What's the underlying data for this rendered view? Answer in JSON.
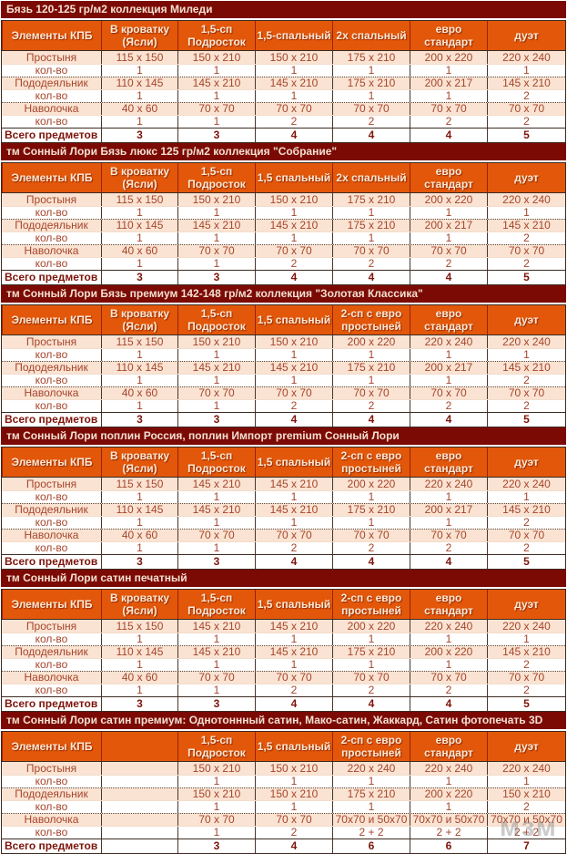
{
  "labels": {
    "qty": "кол-во"
  },
  "colors": {
    "title_bar_bg": "#7c0a04",
    "header_bg": "#e2570a",
    "row_peach_bg": "#fae3d2",
    "data_text": "#a6452c",
    "total_text": "#7d140a"
  },
  "watermark": "мзм",
  "sections": [
    {
      "title": "Бязь 120-125 гр/м2 коллекция Миледи",
      "columns": [
        "Элементы КПБ",
        "В кроватку\n(Ясли)",
        "1,5-сп\nПодросток",
        "1,5-спальный",
        "2х спальный",
        "евро стандарт",
        "дуэт"
      ],
      "rows": [
        {
          "label": "Простыня",
          "sizes": [
            "115 x 150",
            "150 x 210",
            "150 x 210",
            "175 x 210",
            "200 x 220",
            "220 x 240"
          ],
          "qty": [
            "1",
            "1",
            "1",
            "1",
            "1",
            "1"
          ]
        },
        {
          "label": "Пододеяльник",
          "sizes": [
            "110 x 145",
            "145 x 210",
            "145 x 210",
            "175 x 210",
            "200 x 217",
            "145 x 210"
          ],
          "qty": [
            "1",
            "1",
            "1",
            "1",
            "1",
            "2"
          ]
        },
        {
          "label": "Наволочка",
          "sizes": [
            "40 x 60",
            "70 x 70",
            "70 x 70",
            "70 x 70",
            "70 x 70",
            "70 x 70"
          ],
          "qty": [
            "1",
            "1",
            "2",
            "2",
            "2",
            "2"
          ]
        }
      ],
      "total_label": "Всего предметов",
      "totals": [
        "3",
        "3",
        "4",
        "4",
        "4",
        "5"
      ]
    },
    {
      "title": "тм Сонный Лори  Бязь люкс 125 гр/м2  коллекция \"Собрание\"",
      "columns": [
        "Элементы КПБ",
        "В кроватку\n(Ясли)",
        "1,5-сп\nПодросток",
        "1,5 спальный",
        "2х спальный",
        "евро стандарт",
        "дуэт"
      ],
      "rows": [
        {
          "label": "Простыня",
          "sizes": [
            "115 x 150",
            "150 x 210",
            "150 x 210",
            "175 x 210",
            "200 x 220",
            "220 x 240"
          ],
          "qty": [
            "1",
            "1",
            "1",
            "1",
            "1",
            "1"
          ]
        },
        {
          "label": "Пододеяльник",
          "sizes": [
            "110 x 145",
            "145 x 210",
            "145 x 210",
            "175 x 210",
            "200 x 217",
            "145 x 210"
          ],
          "qty": [
            "1",
            "1",
            "1",
            "1",
            "1",
            "2"
          ]
        },
        {
          "label": "Наволочка",
          "sizes": [
            "40 x 60",
            "70 x 70",
            "70 x 70",
            "70 x 70",
            "70 x 70",
            "70 x 70"
          ],
          "qty": [
            "1",
            "1",
            "2",
            "2",
            "2",
            "2"
          ]
        }
      ],
      "total_label": "Всего предметов",
      "totals": [
        "3",
        "3",
        "4",
        "4",
        "4",
        "5"
      ]
    },
    {
      "title": "тм Сонный Лори  Бязь премиум 142-148 гр/м2  коллекция \"Золотая Классика\"",
      "columns": [
        "Элементы КПБ",
        "В кроватку\n(Ясли)",
        "1,5-сп\nПодросток",
        "1,5 спальный",
        "2-сп с евро\nпростыней",
        "евро стандарт",
        "дуэт"
      ],
      "rows": [
        {
          "label": "Простыня",
          "sizes": [
            "115 x 150",
            "150 x 210",
            "150 x 210",
            "200 x 220",
            "220 x 240",
            "220 x 240"
          ],
          "qty": [
            "1",
            "1",
            "1",
            "1",
            "1",
            "1"
          ]
        },
        {
          "label": "Пододеяльник",
          "sizes": [
            "110 x 145",
            "145 x 210",
            "145 x 210",
            "175 x 210",
            "200 x 217",
            "145 x 210"
          ],
          "qty": [
            "1",
            "1",
            "1",
            "1",
            "1",
            "2"
          ]
        },
        {
          "label": "Наволочка",
          "sizes": [
            "40 x 60",
            "70 x 70",
            "70 x 70",
            "70 x 70",
            "70 x 70",
            "70 x 70"
          ],
          "qty": [
            "1",
            "1",
            "2",
            "2",
            "2",
            "2"
          ]
        }
      ],
      "total_label": "Всего предметов",
      "totals": [
        "3",
        "3",
        "4",
        "4",
        "4",
        "5"
      ]
    },
    {
      "title": "тм Сонный Лори поплин Россия, поплин Импорт premium Сонный Лори",
      "columns": [
        "Элементы КПБ",
        "В кроватку\n(Ясли)",
        "1,5-сп\nПодросток",
        "1,5 спальный",
        "2-сп с евро\nпростыней",
        "евро стандарт",
        "дуэт"
      ],
      "rows": [
        {
          "label": "Простыня",
          "sizes": [
            "115 x 150",
            "145 x 210",
            "145 x 210",
            "200 x 220",
            "220 x 240",
            "220 x 240"
          ],
          "qty": [
            "1",
            "1",
            "1",
            "1",
            "1",
            "1"
          ]
        },
        {
          "label": "Пододеяльник",
          "sizes": [
            "110 x 145",
            "145 x 210",
            "145 x 210",
            "175 x 210",
            "200 x 217",
            "145 x 210"
          ],
          "qty": [
            "1",
            "1",
            "1",
            "1",
            "1",
            "2"
          ]
        },
        {
          "label": "Наволочка",
          "sizes": [
            "40 x 60",
            "70 x 70",
            "70 x 70",
            "70 x 70",
            "70 x 70",
            "70 x 70"
          ],
          "qty": [
            "1",
            "1",
            "2",
            "2",
            "2",
            "2"
          ]
        }
      ],
      "total_label": "Всего предметов",
      "totals": [
        "3",
        "3",
        "4",
        "4",
        "4",
        "5"
      ]
    },
    {
      "title": "тм Сонный Лори сатин печатный",
      "columns": [
        "Элементы КПБ",
        "В кроватку\n(Ясли)",
        "1,5-сп\nПодросток",
        "1,5 спальный",
        "2-сп с евро\nпростыней",
        "евро стандарт",
        "дуэт"
      ],
      "rows": [
        {
          "label": "Простыня",
          "sizes": [
            "115 x 150",
            "145 x 210",
            "145 x 210",
            "200 x 220",
            "220 x 240",
            "220 x 240"
          ],
          "qty": [
            "1",
            "1",
            "1",
            "1",
            "1",
            "1"
          ]
        },
        {
          "label": "Пододеяльник",
          "sizes": [
            "110 x 145",
            "145 x 210",
            "145 x 210",
            "175 x 210",
            "200 x 220",
            "145 x 210"
          ],
          "qty": [
            "1",
            "1",
            "1",
            "1",
            "1",
            "2"
          ]
        },
        {
          "label": "Наволочка",
          "sizes": [
            "40 x 60",
            "70 x 70",
            "70 x 70",
            "70 x 70",
            "70 x 70",
            "70 x 70"
          ],
          "qty": [
            "1",
            "1",
            "2",
            "2",
            "2",
            "2"
          ]
        }
      ],
      "total_label": "Всего предметов",
      "totals": [
        "3",
        "3",
        "4",
        "4",
        "4",
        "5"
      ]
    },
    {
      "title": "тм Сонный Лори сатин премиум: Однотоннный сатин, Мако-сатин, Жаккард, Сатин фотопечать 3D",
      "columns": [
        "Элементы КПБ",
        "",
        "1,5-сп\nПодросток",
        "1,5 спальный",
        "2-сп с евро\nпростыней",
        "евро стандарт",
        "дуэт"
      ],
      "rows": [
        {
          "label": "Простыня",
          "sizes": [
            "",
            "150 x 210",
            "150 x 210",
            "220 x 240",
            "220 x 240",
            "220 x 240"
          ],
          "qty": [
            "",
            "1",
            "1",
            "1",
            "1",
            "1"
          ]
        },
        {
          "label": "Пододеяльник",
          "sizes": [
            "",
            "150 x 210",
            "150 x 210",
            "175 x 210",
            "200 x 220",
            "150 x 210"
          ],
          "qty": [
            "",
            "1",
            "1",
            "1",
            "1",
            "2"
          ]
        },
        {
          "label": "Наволочка",
          "sizes": [
            "",
            "70 x 70",
            "70 x 70",
            "70x70 и 50x70",
            "70x70 и 50x70",
            "70x70 и 50x70"
          ],
          "qty": [
            "",
            "1",
            "2",
            "2 + 2",
            "2 + 2",
            "2 + 2"
          ]
        }
      ],
      "total_label": "Всего предметов",
      "totals": [
        "",
        "3",
        "4",
        "6",
        "6",
        "7"
      ]
    }
  ]
}
